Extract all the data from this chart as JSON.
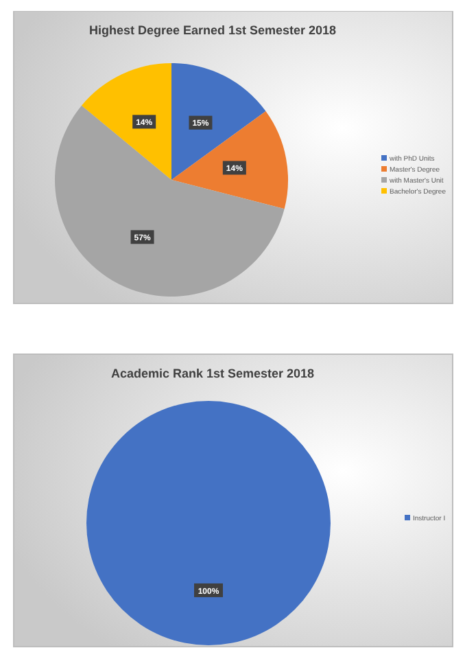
{
  "chart_data": [
    {
      "type": "pie",
      "title": "Highest Degree Earned 1st Semester 2018",
      "categories": [
        "with PhD Units",
        "Master's Degree",
        "with Master's Unit",
        "Bachelor's Degree"
      ],
      "values": [
        15,
        14,
        57,
        14
      ],
      "colors": [
        "#4472c4",
        "#ed7d31",
        "#a5a5a5",
        "#ffc000"
      ],
      "value_labels": [
        "15%",
        "14%",
        "57%",
        "14%"
      ],
      "legend": "right"
    },
    {
      "type": "pie",
      "title": "Academic Rank 1st Semester 2018",
      "categories": [
        "Instructor I"
      ],
      "values": [
        100
      ],
      "colors": [
        "#4472c4"
      ],
      "value_labels": [
        "100%"
      ],
      "legend": "right"
    }
  ]
}
